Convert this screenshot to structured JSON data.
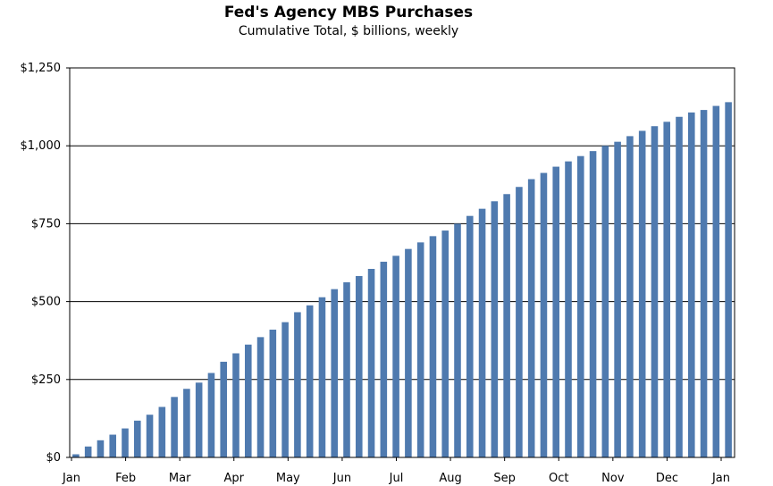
{
  "chart_data": {
    "type": "bar",
    "title": "Fed's Agency MBS Purchases",
    "subtitle": "Cumulative Total, $ billions, weekly",
    "xlabel": "",
    "ylabel": "",
    "ylim": [
      0,
      1250
    ],
    "yticks": [
      0,
      250,
      500,
      750,
      1000,
      1250
    ],
    "ytick_labels": [
      "$0",
      "$250",
      "$500",
      "$750",
      "$1,000",
      "$1,250"
    ],
    "xtick_labels": [
      "Jan",
      "Feb",
      "Mar",
      "Apr",
      "May",
      "Jun",
      "Jul",
      "Aug",
      "Sep",
      "Oct",
      "Nov",
      "Dec",
      "Jan"
    ],
    "grid": true,
    "bar_color": "#4f7aaf",
    "series": [
      {
        "values": [
          10,
          35,
          55,
          73,
          93,
          118,
          137,
          162,
          194,
          220,
          240,
          271,
          307,
          334,
          362,
          386,
          410,
          434,
          466,
          488,
          514,
          540,
          562,
          582,
          605,
          628,
          647,
          669,
          690,
          710,
          728,
          750,
          775,
          798,
          822,
          845,
          868,
          893,
          913,
          933,
          950,
          967,
          983,
          1000,
          1013,
          1031,
          1048,
          1063,
          1077,
          1093,
          1107,
          1115,
          1128,
          1140
        ]
      }
    ]
  }
}
